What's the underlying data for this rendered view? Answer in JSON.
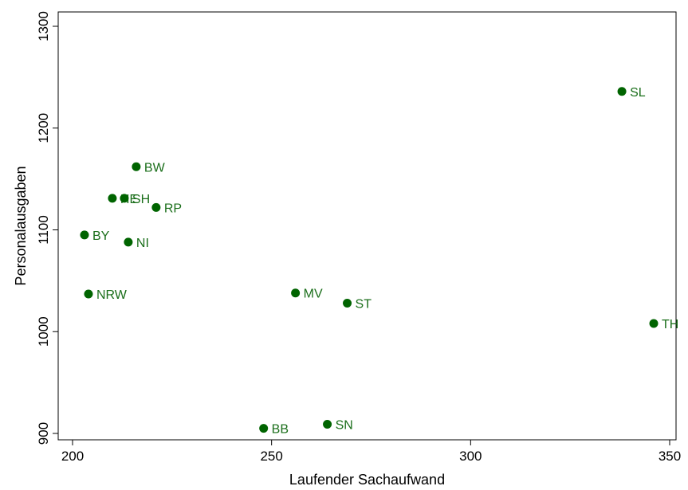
{
  "chart_data": {
    "type": "scatter",
    "title": "",
    "xlabel": "Laufender Sachaufwand",
    "ylabel": "Personalausgaben",
    "xlim": [
      200,
      350
    ],
    "ylim": [
      900,
      1300
    ],
    "xticks": [
      200,
      250,
      300,
      350
    ],
    "yticks": [
      900,
      1000,
      1100,
      1200,
      1300
    ],
    "grid": false,
    "marker_color": "#006400",
    "label_color": "#1a6e1a",
    "points": [
      {
        "label": "SL",
        "x": 338,
        "y": 1236
      },
      {
        "label": "BW",
        "x": 216,
        "y": 1162
      },
      {
        "label": "HE",
        "x": 210,
        "y": 1131
      },
      {
        "label": "SH",
        "x": 213,
        "y": 1131
      },
      {
        "label": "RP",
        "x": 221,
        "y": 1122
      },
      {
        "label": "BY",
        "x": 203,
        "y": 1095
      },
      {
        "label": "NI",
        "x": 214,
        "y": 1088
      },
      {
        "label": "NRW",
        "x": 204,
        "y": 1037
      },
      {
        "label": "MV",
        "x": 256,
        "y": 1038
      },
      {
        "label": "ST",
        "x": 269,
        "y": 1028
      },
      {
        "label": "TH",
        "x": 346,
        "y": 1008
      },
      {
        "label": "BB",
        "x": 248,
        "y": 905
      },
      {
        "label": "SN",
        "x": 264,
        "y": 909
      }
    ]
  }
}
